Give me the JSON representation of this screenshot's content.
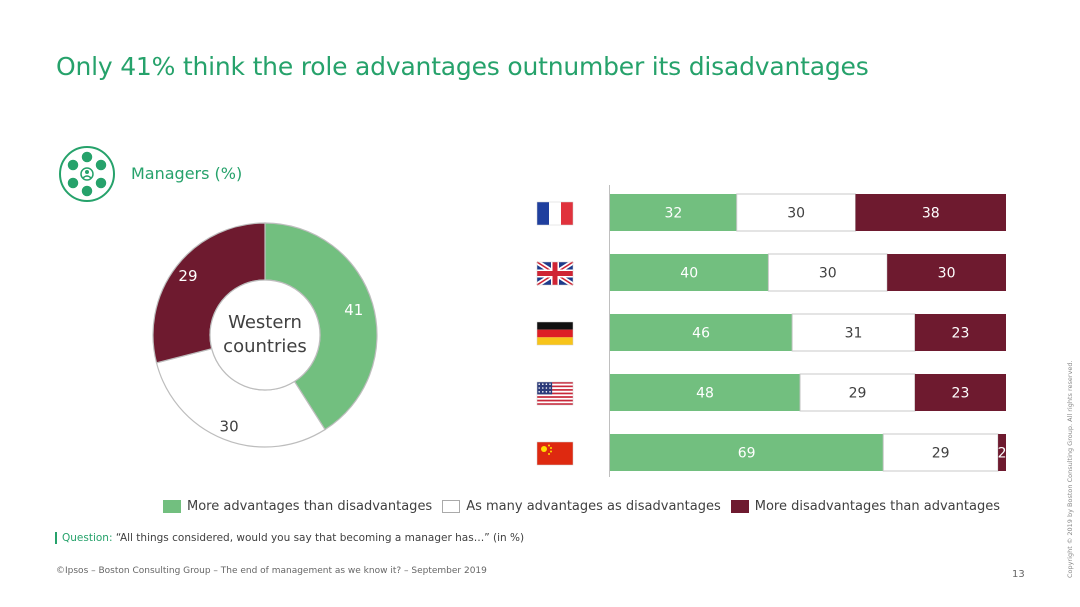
{
  "title": "Only 41% think the role advantages outnumber its disadvantages",
  "segment": {
    "icon": "managers-network-icon",
    "label": "Managers (%)"
  },
  "colors": {
    "positive": "#72bf7f",
    "neutral": "#ffffff",
    "negative": "#6e1a2f",
    "accent": "#26a26b",
    "outline": "#bdbdbd"
  },
  "chart_data": [
    {
      "type": "pie",
      "center_label": [
        "Western",
        "countries"
      ],
      "categories": [
        "More advantages than disadvantages",
        "As many advantages as disadvantages",
        "More disadvantages than advantages"
      ],
      "values": [
        41,
        30,
        29
      ]
    },
    {
      "type": "bar",
      "orientation": "horizontal",
      "stacked": true,
      "categories": [
        "France",
        "United Kingdom",
        "Germany",
        "United States",
        "China"
      ],
      "category_icons": [
        "france-flag-icon",
        "uk-flag-icon",
        "germany-flag-icon",
        "usa-flag-icon",
        "china-flag-icon"
      ],
      "series": [
        {
          "name": "More advantages than disadvantages",
          "values": [
            32,
            40,
            46,
            48,
            69
          ]
        },
        {
          "name": "As many advantages as disadvantages",
          "values": [
            30,
            30,
            31,
            29,
            29
          ]
        },
        {
          "name": "More disadvantages than advantages",
          "values": [
            38,
            30,
            23,
            23,
            2
          ]
        }
      ],
      "xlim": [
        0,
        100
      ]
    }
  ],
  "legend": [
    "More advantages than disadvantages",
    "As many advantages as disadvantages",
    "More disadvantages than advantages"
  ],
  "question": {
    "label": "Question:",
    "text": "“All things considered, would you say that becoming a manager has…” (in %)"
  },
  "footer": "©Ipsos – Boston Consulting Group – The end of management as we know it? – September 2019",
  "page_number": "13",
  "copyright": "Copyright © 2019 by Boston Consulting Group. All rights reserved."
}
